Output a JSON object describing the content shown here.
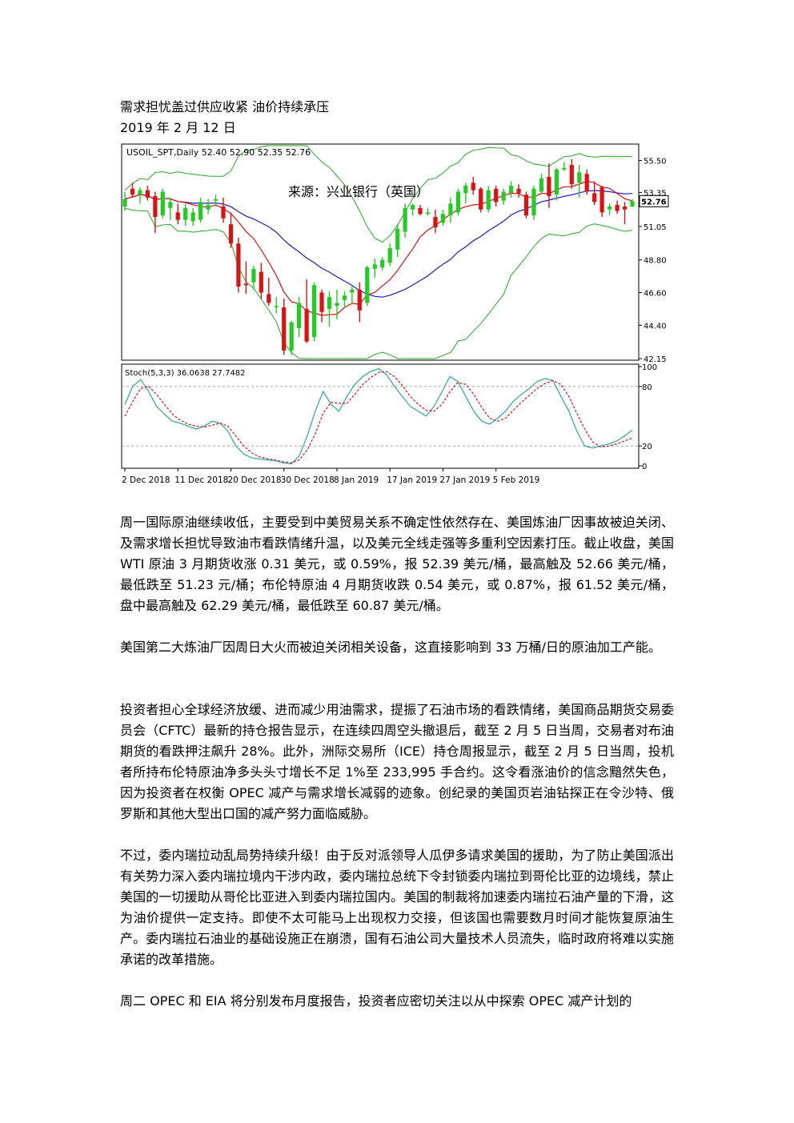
{
  "document": {
    "title": "需求担忧盖过供应收紧 油价持续承压",
    "date": "2019 年 2 月 12 日",
    "paragraphs": [
      "周一国际原油继续收低，主要受到中美贸易关系不确定性依然存在、美国炼油厂因事故被迫关闭、及需求增长担忧导致油市看跌情绪升温，以及美元全线走强等多重利空因素打压。截止收盘，美国 WTI 原油 3 月期货收涨 0.31 美元，或 0.59%，报 52.39 美元/桶，最高触及 52.66 美元/桶，最低跌至 51.23 元/桶；布伦特原油 4 月期货收跌 0.54 美元，或 0.87%，报 61.52 美元/桶，盘中最高触及 62.29 美元/桶，最低跌至 60.87 美元/桶。",
      "美国第二大炼油厂因周日大火而被迫关闭相关设备，这直接影响到 33 万桶/日的原油加工产能。",
      "投资者担心全球经济放缓、进而减少用油需求，提振了石油市场的看跌情绪，美国商品期货交易委员会（CFTC）最新的持仓报告显示，在连续四周空头撤退后，截至 2 月 5 日当周，交易者对布油期货的看跌押注飙升 28%。此外，洲际交易所（ICE）持仓周报显示，截至 2 月 5 日当周，投机者所持布伦特原油净多头头寸增长不足 1%至 233,995 手合约。这令看涨油价的信念黯然失色，因为投资者在权衡 OPEC 减产与需求增长减弱的迹象。创纪录的美国页岩油钻探正在令沙特、俄罗斯和其他大型出口国的减产努力面临威胁。",
      "不过，委内瑞拉动乱局势持续升级！由于反对派领导人瓜伊多请求美国的援助，为了防止美国派出有关势力深入委内瑞拉境内干涉内政，委内瑞拉总统下令封锁委内瑞拉到哥伦比亚的边境线，禁止美国的一切援助从哥伦比亚进入到委内瑞拉国内。美国的制裁将加速委内瑞拉石油产量的下滑，这为油价提供一定支持。即使不太可能马上出现权力交接，但该国也需要数月时间才能恢复原油生产。委内瑞拉石油业的基础设施正在崩溃，国有石油公司大量技术人员流失，临时政府将难以实施承诺的改革措施。",
      "周二 OPEC 和 EIA 将分别发布月度报告，投资者应密切关注以从中探索 OPEC 减产计划的"
    ]
  },
  "chart_data": {
    "type": "candlestick",
    "header": "USOIL_SPT,Daily  52.40 52.90 52.35 52.76",
    "watermark": "来源：兴业银行（英国）",
    "current_price": "52.76",
    "price_ticks": [
      "55.50",
      "53.35",
      "51.05",
      "48.80",
      "46.60",
      "44.40",
      "42.15"
    ],
    "price_tick_values": [
      55.5,
      53.35,
      51.05,
      48.8,
      46.6,
      44.4,
      42.15
    ],
    "ylim": [
      42.15,
      56.5
    ],
    "x_ticks": [
      "2 Dec 2018",
      "11 Dec 2018",
      "20 Dec 2018",
      "30 Dec 2018",
      "8 Jan 2019",
      "17 Jan 2019",
      "27 Jan 2019",
      "5 Feb 2019"
    ],
    "x_tick_index": [
      0,
      7,
      14,
      21,
      28,
      35,
      42,
      49
    ],
    "up_color": "#22cc22",
    "down_color": "#dd1111",
    "candles": [
      {
        "o": 52.4,
        "h": 53.4,
        "l": 52.1,
        "c": 52.9
      },
      {
        "o": 53.6,
        "h": 54.0,
        "l": 53.0,
        "c": 53.2
      },
      {
        "o": 53.2,
        "h": 53.7,
        "l": 52.6,
        "c": 53.5
      },
      {
        "o": 53.5,
        "h": 53.8,
        "l": 52.8,
        "c": 53.0
      },
      {
        "o": 53.1,
        "h": 53.4,
        "l": 50.6,
        "c": 51.7
      },
      {
        "o": 51.8,
        "h": 53.6,
        "l": 51.6,
        "c": 53.4
      },
      {
        "o": 52.3,
        "h": 53.0,
        "l": 51.5,
        "c": 52.7
      },
      {
        "o": 52.0,
        "h": 52.6,
        "l": 51.2,
        "c": 51.5
      },
      {
        "o": 51.5,
        "h": 52.6,
        "l": 51.1,
        "c": 52.3
      },
      {
        "o": 51.4,
        "h": 52.3,
        "l": 51.1,
        "c": 52.0
      },
      {
        "o": 51.5,
        "h": 53.0,
        "l": 51.3,
        "c": 52.7
      },
      {
        "o": 52.2,
        "h": 52.9,
        "l": 51.9,
        "c": 52.5
      },
      {
        "o": 52.8,
        "h": 53.2,
        "l": 52.4,
        "c": 52.9
      },
      {
        "o": 52.4,
        "h": 53.0,
        "l": 51.3,
        "c": 51.6
      },
      {
        "o": 51.2,
        "h": 52.0,
        "l": 49.6,
        "c": 49.9
      },
      {
        "o": 49.9,
        "h": 50.3,
        "l": 46.6,
        "c": 47.0
      },
      {
        "o": 47.2,
        "h": 48.7,
        "l": 46.5,
        "c": 47.1
      },
      {
        "o": 47.3,
        "h": 48.4,
        "l": 46.8,
        "c": 48.2
      },
      {
        "o": 48.0,
        "h": 48.6,
        "l": 46.2,
        "c": 46.6
      },
      {
        "o": 46.5,
        "h": 47.6,
        "l": 45.7,
        "c": 45.9
      },
      {
        "o": 45.7,
        "h": 46.3,
        "l": 45.2,
        "c": 45.7
      },
      {
        "o": 45.6,
        "h": 46.2,
        "l": 42.4,
        "c": 42.7
      },
      {
        "o": 42.7,
        "h": 44.7,
        "l": 42.4,
        "c": 44.6
      },
      {
        "o": 44.2,
        "h": 46.3,
        "l": 43.6,
        "c": 45.9
      },
      {
        "o": 45.5,
        "h": 47.5,
        "l": 43.2,
        "c": 43.3
      },
      {
        "o": 43.6,
        "h": 47.3,
        "l": 43.3,
        "c": 47.1
      },
      {
        "o": 46.6,
        "h": 46.8,
        "l": 44.6,
        "c": 45.3
      },
      {
        "o": 45.5,
        "h": 46.7,
        "l": 44.3,
        "c": 46.3
      },
      {
        "o": 45.7,
        "h": 46.8,
        "l": 44.8,
        "c": 45.9
      },
      {
        "o": 46.1,
        "h": 46.7,
        "l": 45.6,
        "c": 46.4
      },
      {
        "o": 46.6,
        "h": 47.1,
        "l": 45.8,
        "c": 46.8
      },
      {
        "o": 46.8,
        "h": 47.3,
        "l": 44.6,
        "c": 45.4
      },
      {
        "o": 45.9,
        "h": 48.4,
        "l": 45.7,
        "c": 48.3
      },
      {
        "o": 48.2,
        "h": 48.9,
        "l": 47.6,
        "c": 48.5
      },
      {
        "o": 48.3,
        "h": 49.0,
        "l": 48.1,
        "c": 48.8
      },
      {
        "o": 48.6,
        "h": 49.9,
        "l": 48.4,
        "c": 49.6
      },
      {
        "o": 49.5,
        "h": 51.2,
        "l": 49.0,
        "c": 50.9
      },
      {
        "o": 50.7,
        "h": 52.6,
        "l": 50.3,
        "c": 52.3
      },
      {
        "o": 52.2,
        "h": 52.6,
        "l": 51.8,
        "c": 52.5
      },
      {
        "o": 52.3,
        "h": 52.5,
        "l": 51.8,
        "c": 51.9
      },
      {
        "o": 51.9,
        "h": 52.3,
        "l": 51.8,
        "c": 52.0
      },
      {
        "o": 51.7,
        "h": 52.2,
        "l": 50.6,
        "c": 51.0
      },
      {
        "o": 51.3,
        "h": 52.2,
        "l": 51.1,
        "c": 51.9
      },
      {
        "o": 51.8,
        "h": 53.0,
        "l": 51.3,
        "c": 52.6
      },
      {
        "o": 52.0,
        "h": 53.6,
        "l": 51.8,
        "c": 53.4
      },
      {
        "o": 53.3,
        "h": 54.0,
        "l": 52.6,
        "c": 53.8
      },
      {
        "o": 54.0,
        "h": 54.4,
        "l": 53.2,
        "c": 53.5
      },
      {
        "o": 53.6,
        "h": 53.7,
        "l": 52.0,
        "c": 52.2
      },
      {
        "o": 52.2,
        "h": 53.8,
        "l": 52.0,
        "c": 53.5
      },
      {
        "o": 53.6,
        "h": 53.8,
        "l": 52.4,
        "c": 52.7
      },
      {
        "o": 52.8,
        "h": 53.6,
        "l": 52.5,
        "c": 53.4
      },
      {
        "o": 53.3,
        "h": 54.1,
        "l": 53.0,
        "c": 53.8
      },
      {
        "o": 53.6,
        "h": 53.9,
        "l": 53.0,
        "c": 53.3
      },
      {
        "o": 53.2,
        "h": 53.4,
        "l": 51.6,
        "c": 51.8
      },
      {
        "o": 51.8,
        "h": 53.8,
        "l": 51.5,
        "c": 53.6
      },
      {
        "o": 53.4,
        "h": 54.6,
        "l": 53.2,
        "c": 54.3
      },
      {
        "o": 54.4,
        "h": 55.3,
        "l": 52.3,
        "c": 53.1
      },
      {
        "o": 53.2,
        "h": 55.0,
        "l": 52.8,
        "c": 54.9
      },
      {
        "o": 54.9,
        "h": 55.4,
        "l": 54.8,
        "c": 55.0
      },
      {
        "o": 55.2,
        "h": 55.6,
        "l": 53.6,
        "c": 53.9
      },
      {
        "o": 54.0,
        "h": 55.2,
        "l": 53.0,
        "c": 54.7
      },
      {
        "o": 54.6,
        "h": 54.9,
        "l": 53.2,
        "c": 53.4
      },
      {
        "o": 53.3,
        "h": 54.1,
        "l": 52.5,
        "c": 52.7
      },
      {
        "o": 53.7,
        "h": 53.8,
        "l": 51.7,
        "c": 52.0
      },
      {
        "o": 52.2,
        "h": 52.6,
        "l": 51.8,
        "c": 52.4
      },
      {
        "o": 52.5,
        "h": 52.8,
        "l": 51.9,
        "c": 52.1
      },
      {
        "o": 52.4,
        "h": 52.7,
        "l": 51.2,
        "c": 52.2
      },
      {
        "o": 52.4,
        "h": 52.9,
        "l": 52.35,
        "c": 52.76
      }
    ],
    "stoch": {
      "label": "Stoch(5,3,3) 36.0638 27.7482",
      "ticks": [
        "100",
        "80",
        "20",
        "0"
      ],
      "tick_values": [
        100,
        80,
        20,
        0
      ],
      "levels": [
        80,
        20
      ],
      "main_color": "#2aa6a6",
      "signal_color": "#dd1111",
      "main": [
        62,
        80,
        87,
        75,
        60,
        52,
        45,
        43,
        40,
        37,
        40,
        45,
        43,
        35,
        20,
        12,
        8,
        7,
        6,
        5,
        3,
        2,
        10,
        30,
        55,
        75,
        62,
        55,
        70,
        82,
        90,
        95,
        98,
        92,
        80,
        70,
        60,
        55,
        50,
        60,
        75,
        90,
        85,
        70,
        55,
        45,
        42,
        48,
        55,
        65,
        72,
        78,
        85,
        88,
        86,
        70,
        55,
        35,
        20,
        18,
        20,
        22,
        25,
        30,
        36
      ],
      "signal": [
        50,
        65,
        78,
        80,
        72,
        62,
        52,
        46,
        42,
        40,
        39,
        41,
        43,
        40,
        30,
        20,
        13,
        9,
        7,
        6,
        4,
        3,
        6,
        16,
        32,
        53,
        64,
        63,
        63,
        72,
        82,
        89,
        94,
        95,
        90,
        81,
        70,
        62,
        56,
        55,
        62,
        75,
        84,
        82,
        72,
        59,
        48,
        45,
        48,
        56,
        64,
        71,
        78,
        83,
        86,
        82,
        70,
        53,
        37,
        24,
        19,
        20,
        22,
        25,
        28
      ]
    }
  }
}
